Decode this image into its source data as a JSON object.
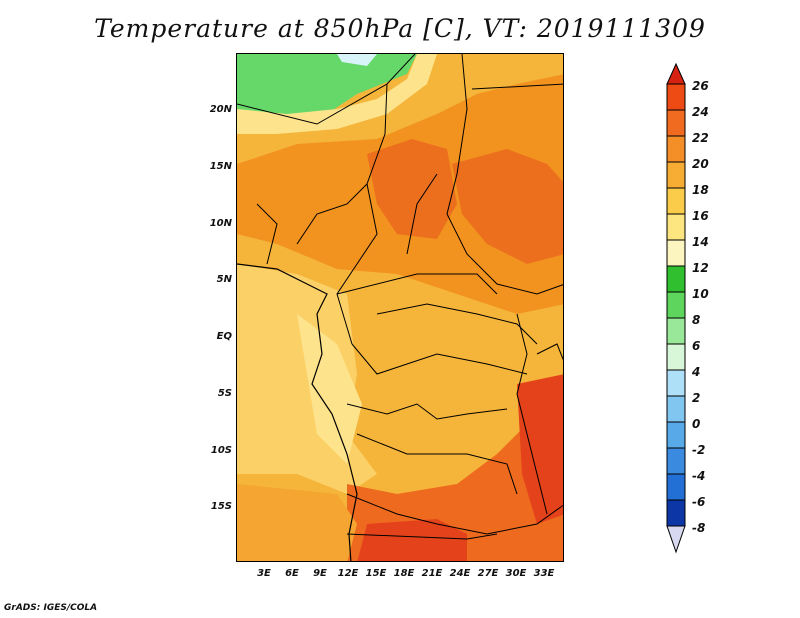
{
  "title": "Temperature at 850hPa [C], VT: 2019111309",
  "credit": "GrADS: IGES/COLA",
  "map": {
    "lon_labels": [
      "3E",
      "6E",
      "9E",
      "12E",
      "15E",
      "18E",
      "21E",
      "24E",
      "27E",
      "30E",
      "33E"
    ],
    "lat_labels": [
      "20N",
      "15N",
      "10N",
      "5N",
      "EQ",
      "5S",
      "10S",
      "15S"
    ],
    "field": "Temperature at 850hPa",
    "units": "C",
    "colors": {
      "land_background": "#f2b13c",
      "cool_north": "#61dd61",
      "warm_core": "#ef7b1f",
      "hot_core": "#e4421a",
      "coastal_cool": "#fbe08a",
      "boundaries": "#000000"
    }
  },
  "colorbar": {
    "labels": [
      "26",
      "24",
      "22",
      "20",
      "18",
      "16",
      "14",
      "12",
      "10",
      "8",
      "6",
      "4",
      "2",
      "0",
      "-2",
      "-4",
      "-6",
      "-8"
    ],
    "colors": [
      "#d62210",
      "#ee4a14",
      "#f06a1f",
      "#f48e27",
      "#f7ad34",
      "#fbcb4a",
      "#fde580",
      "#fdf5c0",
      "#2fbf2f",
      "#5ed65e",
      "#99e799",
      "#d8f6d8",
      "#aee0f8",
      "#80c6f0",
      "#57a9e8",
      "#3a8ae0",
      "#226fd6",
      "#1551c4",
      "#0c36a5",
      "#061a7a"
    ],
    "top_color": "#d62210",
    "bottom_color": "#d8d8f0"
  }
}
